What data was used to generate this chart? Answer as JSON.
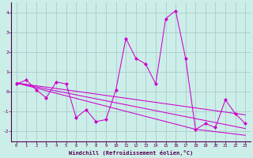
{
  "xlabel": "Windchill (Refroidissement éolien,°C)",
  "background_color": "#cceee8",
  "grid_color": "#aacccc",
  "line_color": "#cc00cc",
  "x_data": [
    0,
    1,
    2,
    3,
    4,
    5,
    6,
    7,
    8,
    9,
    10,
    11,
    12,
    13,
    14,
    15,
    16,
    17,
    18,
    19,
    20,
    21,
    22,
    23
  ],
  "y_main": [
    0.4,
    0.6,
    0.1,
    -0.3,
    0.5,
    0.4,
    -1.3,
    -0.9,
    -1.5,
    -1.4,
    0.1,
    2.7,
    1.7,
    1.4,
    0.4,
    3.7,
    4.1,
    1.7,
    -1.9,
    -1.6,
    -1.8,
    -0.4,
    -1.1,
    -1.6
  ],
  "y_line1": [
    0.45,
    0.38,
    0.31,
    0.24,
    0.17,
    0.1,
    0.03,
    -0.04,
    -0.11,
    -0.18,
    -0.25,
    -0.32,
    -0.39,
    -0.46,
    -0.53,
    -0.6,
    -0.67,
    -0.74,
    -0.81,
    -0.88,
    -0.95,
    -1.02,
    -1.09,
    -1.16
  ],
  "y_line2": [
    0.45,
    0.35,
    0.25,
    0.15,
    0.05,
    -0.05,
    -0.15,
    -0.25,
    -0.35,
    -0.45,
    -0.55,
    -0.65,
    -0.75,
    -0.85,
    -0.95,
    -1.05,
    -1.15,
    -1.25,
    -1.35,
    -1.45,
    -1.55,
    -1.65,
    -1.75,
    -1.85
  ],
  "y_line3": [
    0.45,
    0.32,
    0.19,
    0.06,
    -0.07,
    -0.2,
    -0.33,
    -0.46,
    -0.59,
    -0.72,
    -0.85,
    -0.98,
    -1.11,
    -1.24,
    -1.37,
    -1.5,
    -1.63,
    -1.76,
    -1.89,
    -1.95,
    -2.01,
    -2.07,
    -2.13,
    -2.19
  ],
  "ylim": [
    -2.5,
    4.5
  ],
  "xlim": [
    -0.5,
    23.5
  ],
  "yticks": [
    -2,
    -1,
    0,
    1,
    2,
    3,
    4
  ],
  "xticks": [
    0,
    1,
    2,
    3,
    4,
    5,
    6,
    7,
    8,
    9,
    10,
    11,
    12,
    13,
    14,
    15,
    16,
    17,
    18,
    19,
    20,
    21,
    22,
    23
  ]
}
